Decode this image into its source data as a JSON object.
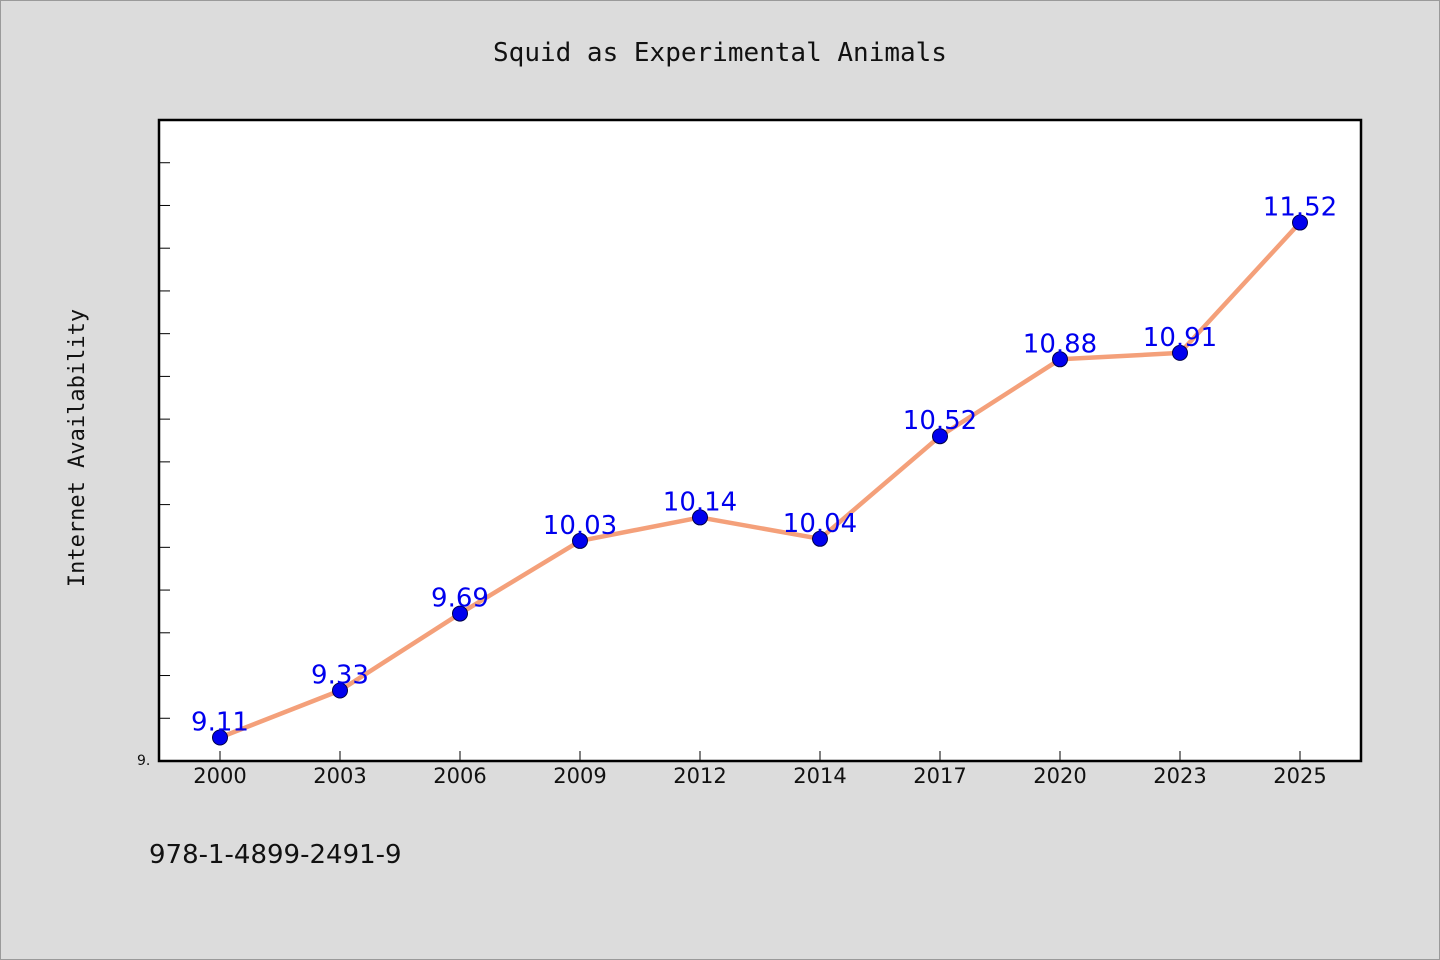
{
  "chart_data": {
    "type": "line",
    "title": "Squid as Experimental Animals",
    "xlabel": "",
    "ylabel": "Internet Availability",
    "categories": [
      "2000",
      "2003",
      "2006",
      "2009",
      "2012",
      "2014",
      "2017",
      "2020",
      "2023",
      "2025"
    ],
    "series": [
      {
        "values": [
          9.11,
          9.33,
          9.69,
          10.03,
          10.14,
          10.04,
          10.52,
          10.88,
          10.91,
          11.52
        ]
      }
    ],
    "data_labels": [
      "9.11",
      "9.33",
      "9.69",
      "10.03",
      "10.14",
      "10.04",
      "10.52",
      "10.88",
      "10.91",
      "11.52"
    ],
    "ylim": [
      9.0,
      12.0
    ],
    "y_tick_labels": [
      "9."
    ],
    "grid": false,
    "legend": "none"
  },
  "footer": {
    "isbn": "978-1-4899-2491-9"
  },
  "colors": {
    "background": "#dcdcdc",
    "plot_background": "#ffffff",
    "line": "#f4a07a",
    "marker": "#0000ee",
    "data_label": "#0000ee"
  }
}
